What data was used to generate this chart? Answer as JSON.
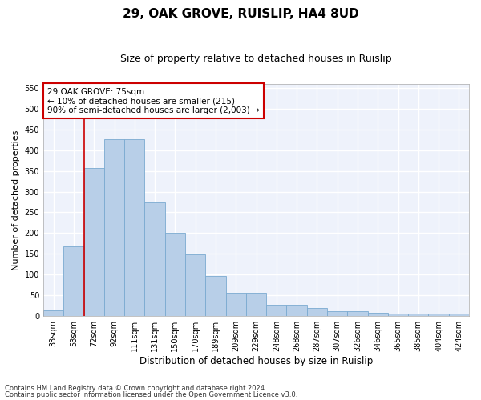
{
  "title": "29, OAK GROVE, RUISLIP, HA4 8UD",
  "subtitle": "Size of property relative to detached houses in Ruislip",
  "xlabel": "Distribution of detached houses by size in Ruislip",
  "ylabel": "Number of detached properties",
  "categories": [
    "33sqm",
    "53sqm",
    "72sqm",
    "92sqm",
    "111sqm",
    "131sqm",
    "150sqm",
    "170sqm",
    "189sqm",
    "209sqm",
    "229sqm",
    "248sqm",
    "268sqm",
    "287sqm",
    "307sqm",
    "326sqm",
    "346sqm",
    "365sqm",
    "385sqm",
    "404sqm",
    "424sqm"
  ],
  "values": [
    13,
    168,
    357,
    427,
    427,
    275,
    200,
    148,
    96,
    56,
    56,
    26,
    26,
    19,
    12,
    12,
    7,
    6,
    5,
    5,
    5
  ],
  "bar_color": "#b8cfe8",
  "bar_edge_color": "#7aaad0",
  "vline_x_idx": 2,
  "vline_color": "#cc0000",
  "annotation_text": "29 OAK GROVE: 75sqm\n← 10% of detached houses are smaller (215)\n90% of semi-detached houses are larger (2,003) →",
  "annotation_box_color": "#ffffff",
  "annotation_box_edge_color": "#cc0000",
  "ylim": [
    0,
    560
  ],
  "yticks": [
    0,
    50,
    100,
    150,
    200,
    250,
    300,
    350,
    400,
    450,
    500,
    550
  ],
  "background_color": "#eef2fb",
  "grid_color": "#ffffff",
  "footer_line1": "Contains HM Land Registry data © Crown copyright and database right 2024.",
  "footer_line2": "Contains public sector information licensed under the Open Government Licence v3.0.",
  "title_fontsize": 11,
  "subtitle_fontsize": 9,
  "xlabel_fontsize": 8.5,
  "ylabel_fontsize": 8,
  "tick_fontsize": 7,
  "annotation_fontsize": 7.5,
  "footer_fontsize": 6
}
